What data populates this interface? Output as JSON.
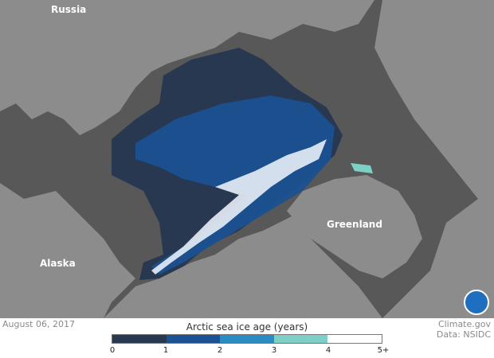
{
  "map": {
    "labels": {
      "russia": "Russia",
      "alaska": "Alaska",
      "greenland": "Greenland"
    },
    "colors": {
      "ocean": "#585858",
      "land": "#8c8c8c"
    }
  },
  "date": "August 06, 2017",
  "credit": {
    "source": "Climate.gov",
    "data": "Data: NSIDC"
  },
  "logo": "NOAA",
  "legend": {
    "title": "Arctic sea ice age (years)",
    "ticks": [
      "0",
      "1",
      "2",
      "3",
      "4",
      "5+"
    ],
    "colors": [
      "#283850",
      "#1a5294",
      "#2a8cc0",
      "#7ecfc5",
      "#ffffff"
    ]
  }
}
